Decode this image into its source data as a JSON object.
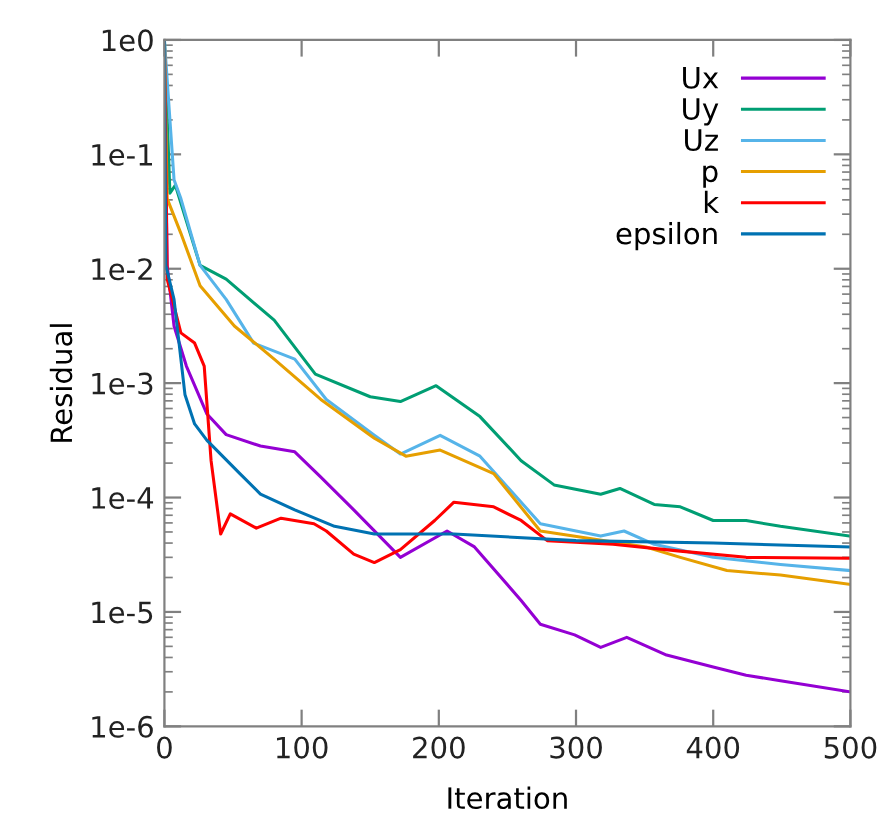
{
  "chart_data": {
    "type": "line",
    "xlabel": "Iteration",
    "ylabel": "Residual",
    "log": "y",
    "xlim": [
      0,
      500
    ],
    "xticks": [
      0,
      100,
      200,
      300,
      400,
      500
    ],
    "ylim": [
      1e-06,
      1
    ],
    "yticks": [
      {
        "value": 1e-06,
        "label": "1e-6"
      },
      {
        "value": 1e-05,
        "label": "1e-5"
      },
      {
        "value": 0.0001,
        "label": "1e-4"
      },
      {
        "value": 0.001,
        "label": "1e-3"
      },
      {
        "value": 0.01,
        "label": "1e-2"
      },
      {
        "value": 0.1,
        "label": "1e-1"
      },
      {
        "value": 1,
        "label": "1e0"
      }
    ],
    "grid": false,
    "legend": "top right",
    "marker": "none",
    "line_style": "solid",
    "series": [
      {
        "name": "Ux",
        "color": "#9400d3",
        "x": [
          0,
          2,
          7,
          16,
          31,
          45,
          70,
          95,
          114,
          138,
          172,
          206,
          226,
          260,
          274,
          299,
          318,
          337,
          366,
          400,
          424,
          449,
          500
        ],
        "values": [
          1,
          0.0107,
          0.00316,
          0.00141,
          0.000537,
          0.000355,
          0.000282,
          0.000251,
          0.000151,
          7.8e-05,
          3e-05,
          5.1e-05,
          3.7e-05,
          1.26e-05,
          7.8e-06,
          6.3e-06,
          4.9e-06,
          6e-06,
          4.2e-06,
          3.3e-06,
          2.8e-06,
          2.5e-06,
          2e-06
        ]
      },
      {
        "name": "Uy",
        "color": "#009e73",
        "x": [
          0,
          4,
          8,
          26,
          45,
          80,
          110,
          150,
          172,
          198,
          230,
          260,
          284,
          318,
          332,
          357,
          376,
          400,
          424,
          449,
          500
        ],
        "values": [
          1,
          0.0457,
          0.0537,
          0.0107,
          0.0081,
          0.00355,
          0.0012,
          0.00076,
          0.00069,
          0.00095,
          0.00051,
          0.00021,
          0.000129,
          0.000107,
          0.00012,
          8.7e-05,
          8.3e-05,
          6.3e-05,
          6.3e-05,
          5.6e-05,
          4.6e-05
        ]
      },
      {
        "name": "Uz",
        "color": "#56b4e9",
        "x": [
          0,
          7,
          12,
          26,
          45,
          65,
          95,
          118,
          153,
          172,
          201,
          230,
          274,
          318,
          335,
          357,
          400,
          449,
          500
        ],
        "values": [
          1,
          0.06,
          0.041,
          0.0107,
          0.0054,
          0.00224,
          0.00162,
          0.00072,
          0.00035,
          0.00024,
          0.00035,
          0.00023,
          5.9e-05,
          4.6e-05,
          5.1e-05,
          3.9e-05,
          3e-05,
          2.6e-05,
          2.3e-05
        ]
      },
      {
        "name": "p",
        "color": "#e69f00",
        "x": [
          0,
          2,
          12,
          26,
          51,
          80,
          114,
          153,
          176,
          201,
          240,
          274,
          351,
          376,
          410,
          449,
          500
        ],
        "values": [
          1,
          0.041,
          0.0204,
          0.0071,
          0.00316,
          0.00162,
          0.00072,
          0.00033,
          0.00023,
          0.00026,
          0.000162,
          5.1e-05,
          3.7e-05,
          3e-05,
          2.3e-05,
          2.1e-05,
          1.74e-05
        ]
      },
      {
        "name": "k",
        "color": "#ff0000",
        "x": [
          0,
          2,
          12,
          22,
          29,
          34,
          41,
          48,
          67,
          85,
          109,
          118,
          138,
          153,
          172,
          197,
          211,
          240,
          260,
          279,
          327,
          376,
          424,
          500
        ],
        "values": [
          1,
          0.0081,
          0.00275,
          0.00224,
          0.00141,
          0.00021,
          4.8e-05,
          7.2e-05,
          5.4e-05,
          6.6e-05,
          5.9e-05,
          5.1e-05,
          3.2e-05,
          2.7e-05,
          3.5e-05,
          6.3e-05,
          9.1e-05,
          8.3e-05,
          6.3e-05,
          4.2e-05,
          3.9e-05,
          3.4e-05,
          3e-05,
          2.95e-05
        ]
      },
      {
        "name": "epsilon",
        "color": "#0072b2",
        "x": [
          0,
          1,
          7,
          15,
          22,
          31,
          55,
          70,
          95,
          124,
          153,
          211,
          300,
          400,
          500
        ],
        "values": [
          1,
          0.0107,
          0.0054,
          0.00079,
          0.00044,
          0.000316,
          0.000162,
          0.000107,
          7.8e-05,
          5.6e-05,
          4.8e-05,
          4.8e-05,
          4.2e-05,
          4e-05,
          3.7e-05
        ]
      }
    ]
  }
}
